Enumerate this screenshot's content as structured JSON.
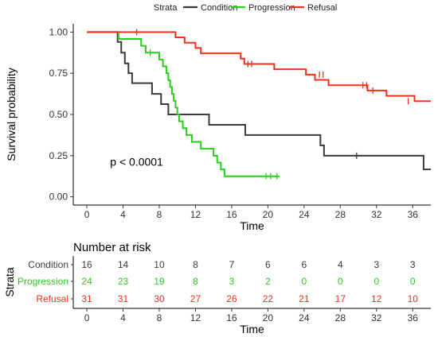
{
  "chart_data": [
    {
      "type": "line",
      "chart_kind": "kaplan-meier step",
      "legend": {
        "title": "Strata",
        "placement": "top",
        "entries": [
          {
            "name": "Condition",
            "color": "#3a3a3a"
          },
          {
            "name": "Progression",
            "color": "#2ccc1f"
          },
          {
            "name": "Refusal",
            "color": "#f2311b"
          }
        ]
      },
      "xlabel": "Time",
      "ylabel": "Survival probability",
      "xlim": [
        -1.5,
        38
      ],
      "ylim": [
        -0.05,
        1.05
      ],
      "xticks": [
        0,
        4,
        8,
        12,
        16,
        20,
        24,
        28,
        32,
        36
      ],
      "xtick_labels": [
        "0",
        "4",
        "8",
        "12",
        "16",
        "20",
        "24",
        "28",
        "32",
        "36"
      ],
      "yticks": [
        0,
        0.25,
        0.5,
        0.75,
        1.0
      ],
      "ytick_labels": [
        "0.00",
        "0.25",
        "0.50",
        "0.75",
        "1.00"
      ],
      "grid": false,
      "annotation": {
        "text": "p < 0.0001",
        "x": 5.5,
        "y": 0.19
      },
      "series": [
        {
          "name": "Condition",
          "color": "#3a3a3a",
          "steps": [
            [
              0,
              1.0
            ],
            [
              3.4,
              0.94
            ],
            [
              3.8,
              0.875
            ],
            [
              4.2,
              0.81
            ],
            [
              4.6,
              0.75
            ],
            [
              5.0,
              0.69
            ],
            [
              7.2,
              0.625
            ],
            [
              8.2,
              0.5625
            ],
            [
              9.0,
              0.5
            ],
            [
              13.5,
              0.4375
            ],
            [
              17.5,
              0.375
            ],
            [
              25.8,
              0.3125
            ],
            [
              26.2,
              0.25
            ],
            [
              37.2,
              0.1667
            ]
          ],
          "end": 38,
          "censored": [
            [
              29.8,
              0.25
            ]
          ]
        },
        {
          "name": "Progression",
          "color": "#2ccc1f",
          "steps": [
            [
              0,
              1.0
            ],
            [
              3.5,
              0.9583
            ],
            [
              6.0,
              0.9167
            ],
            [
              6.5,
              0.875
            ],
            [
              8.0,
              0.8333
            ],
            [
              8.4,
              0.7917
            ],
            [
              8.8,
              0.75
            ],
            [
              9.0,
              0.7083
            ],
            [
              9.2,
              0.6667
            ],
            [
              9.4,
              0.625
            ],
            [
              9.6,
              0.5833
            ],
            [
              9.8,
              0.5417
            ],
            [
              10.0,
              0.5
            ],
            [
              10.2,
              0.4583
            ],
            [
              10.6,
              0.4167
            ],
            [
              11.0,
              0.375
            ],
            [
              11.6,
              0.3333
            ],
            [
              12.6,
              0.2917
            ],
            [
              14.0,
              0.25
            ],
            [
              14.4,
              0.2083
            ],
            [
              14.8,
              0.1667
            ],
            [
              15.2,
              0.125
            ]
          ],
          "end": 21.3,
          "censored": [
            [
              7.0,
              0.875
            ],
            [
              19.8,
              0.125
            ],
            [
              20.3,
              0.125
            ],
            [
              21.0,
              0.125
            ]
          ]
        },
        {
          "name": "Refusal",
          "color": "#f2311b",
          "steps": [
            [
              0,
              1.0
            ],
            [
              9.8,
              0.9677
            ],
            [
              10.8,
              0.9355
            ],
            [
              12.0,
              0.9032
            ],
            [
              12.6,
              0.871
            ],
            [
              17.0,
              0.8387
            ],
            [
              17.4,
              0.8065
            ],
            [
              20.7,
              0.7742
            ],
            [
              24.2,
              0.7419
            ],
            [
              25.2,
              0.7097
            ],
            [
              26.7,
              0.6774
            ],
            [
              31.0,
              0.6452
            ],
            [
              33.1,
              0.6129
            ],
            [
              36.2,
              0.5806
            ]
          ],
          "end": 38,
          "censored": [
            [
              5.5,
              1.0
            ],
            [
              17.8,
              0.8065
            ],
            [
              18.2,
              0.8065
            ],
            [
              25.7,
              0.7419
            ],
            [
              26.1,
              0.7419
            ],
            [
              30.5,
              0.6774
            ],
            [
              30.9,
              0.6774
            ],
            [
              31.6,
              0.6452
            ],
            [
              35.5,
              0.5806
            ]
          ]
        }
      ]
    },
    {
      "type": "table",
      "title": "Number at risk",
      "ylabel": "Strata",
      "xlabel": "Time",
      "x": [
        0,
        4,
        8,
        12,
        16,
        20,
        24,
        28,
        32,
        36
      ],
      "xtick_labels": [
        "0",
        "4",
        "8",
        "12",
        "16",
        "20",
        "24",
        "28",
        "32",
        "36"
      ],
      "rows": [
        {
          "name": "Condition",
          "color": "#3a3a3a",
          "values": [
            16,
            14,
            10,
            8,
            7,
            6,
            6,
            4,
            3,
            3
          ]
        },
        {
          "name": "Progression",
          "color": "#2ccc1f",
          "values": [
            24,
            23,
            19,
            8,
            3,
            2,
            0,
            0,
            0,
            0
          ]
        },
        {
          "name": "Refusal",
          "color": "#f2311b",
          "values": [
            31,
            31,
            30,
            27,
            26,
            22,
            21,
            17,
            12,
            10
          ]
        }
      ]
    }
  ]
}
